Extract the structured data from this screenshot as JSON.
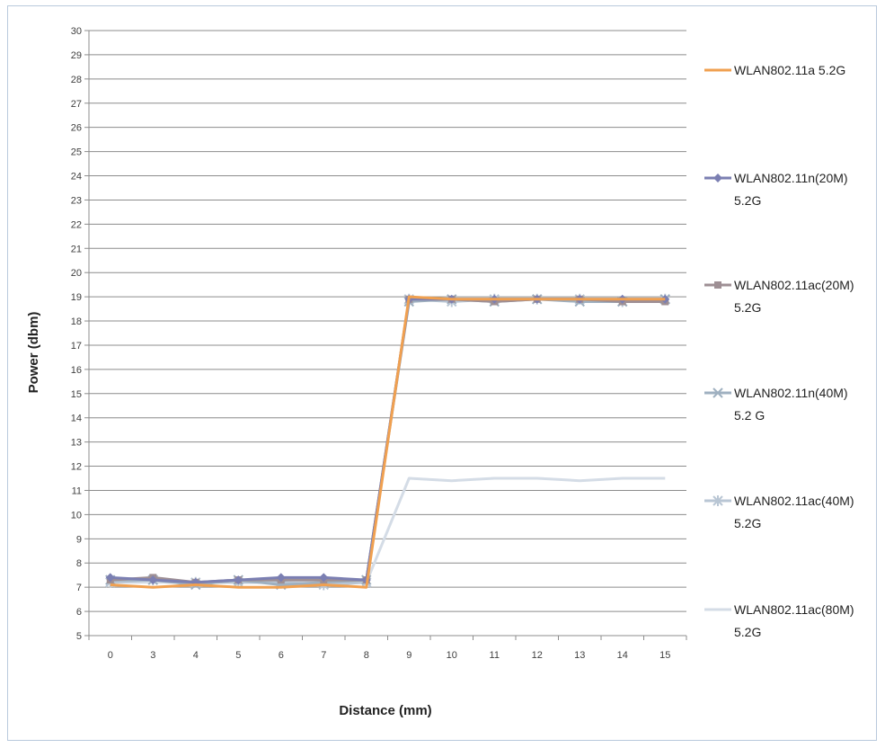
{
  "chart_data": {
    "type": "line",
    "title": "",
    "xlabel": "Distance (mm)",
    "ylabel": "Power (dbm)",
    "ylim": [
      5,
      30
    ],
    "yticks": [
      "5",
      "6",
      "7",
      "8",
      "9",
      "10",
      "11",
      "12",
      "13",
      "14",
      "15",
      "16",
      "17",
      "18",
      "19",
      "20",
      "21",
      "22",
      "23",
      "24",
      "25",
      "26",
      "27",
      "28",
      "29",
      "30"
    ],
    "categories": [
      "0",
      "3",
      "4",
      "5",
      "6",
      "7",
      "8",
      "9",
      "10",
      "11",
      "12",
      "13",
      "14",
      "15"
    ],
    "grid": true,
    "legend_position": "right",
    "series": [
      {
        "name": "WLAN802.11a 5.2G",
        "color": "#f0a050",
        "marker": "none",
        "values": [
          7.1,
          7.0,
          7.1,
          7.0,
          7.0,
          7.1,
          7.0,
          19.0,
          18.9,
          18.9,
          18.9,
          18.9,
          18.9,
          18.9
        ]
      },
      {
        "name": "WLAN802.11n(20M) 5.2G",
        "color": "#7b7fb2",
        "marker": "diamond",
        "values": [
          7.4,
          7.3,
          7.2,
          7.3,
          7.4,
          7.4,
          7.3,
          18.9,
          18.9,
          18.9,
          18.9,
          18.9,
          18.9,
          18.9
        ]
      },
      {
        "name": "WLAN802.11ac(20M) 5.2G",
        "color": "#9e8f94",
        "marker": "square",
        "values": [
          7.3,
          7.4,
          7.2,
          7.3,
          7.3,
          7.3,
          7.3,
          18.9,
          18.9,
          18.8,
          18.9,
          18.9,
          18.8,
          18.8
        ]
      },
      {
        "name": "WLAN802.11n(40M) 5.2 G",
        "color": "#9fb0c0",
        "marker": "x",
        "values": [
          7.3,
          7.3,
          7.1,
          7.3,
          7.1,
          7.2,
          7.3,
          18.8,
          18.9,
          18.8,
          18.9,
          18.8,
          18.8,
          18.9
        ]
      },
      {
        "name": "WLAN802.11ac(40M) 5.2G",
        "color": "#b9c6d4",
        "marker": "star",
        "values": [
          7.2,
          7.3,
          7.2,
          7.2,
          7.2,
          7.1,
          7.2,
          18.9,
          18.8,
          18.9,
          18.9,
          18.9,
          18.8,
          18.9
        ]
      },
      {
        "name": "WLAN802.11ac(80M) 5.2G",
        "color": "#d4dce6",
        "marker": "none",
        "values": [
          7.2,
          7.2,
          7.2,
          7.2,
          7.2,
          7.2,
          7.2,
          11.5,
          11.4,
          11.5,
          11.5,
          11.4,
          11.5,
          11.5
        ]
      }
    ]
  }
}
